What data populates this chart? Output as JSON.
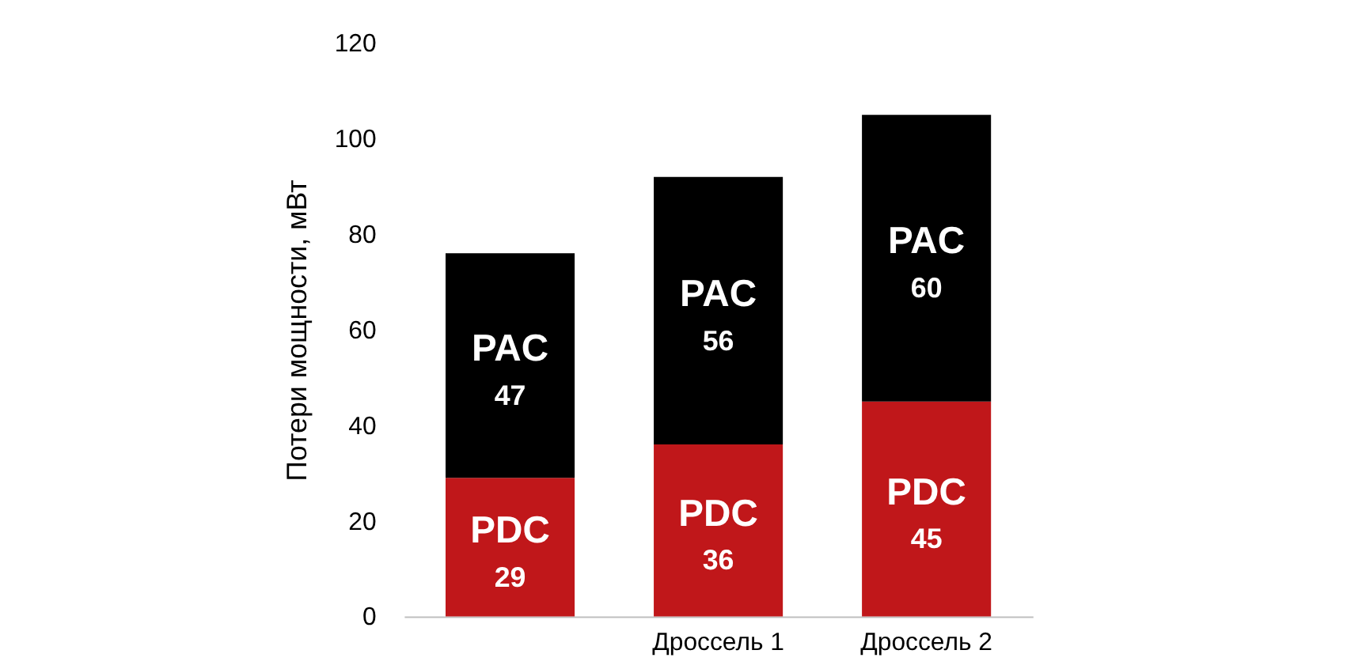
{
  "chart_data": {
    "type": "bar",
    "stacked": true,
    "ylabel": "Потери мощности, мВт",
    "categories": [
      null,
      "Дроссель 1",
      "Дроссель 2"
    ],
    "series": [
      {
        "name": "PDC",
        "color": "#c0171a",
        "values": [
          29,
          36,
          45
        ]
      },
      {
        "name": "PAC",
        "color": "#000000",
        "values": [
          47,
          56,
          60
        ]
      }
    ],
    "ylim": [
      0,
      120
    ],
    "yticks": [
      0,
      20,
      40,
      60,
      80,
      100,
      120
    ],
    "grid": false,
    "data_labels": true
  }
}
